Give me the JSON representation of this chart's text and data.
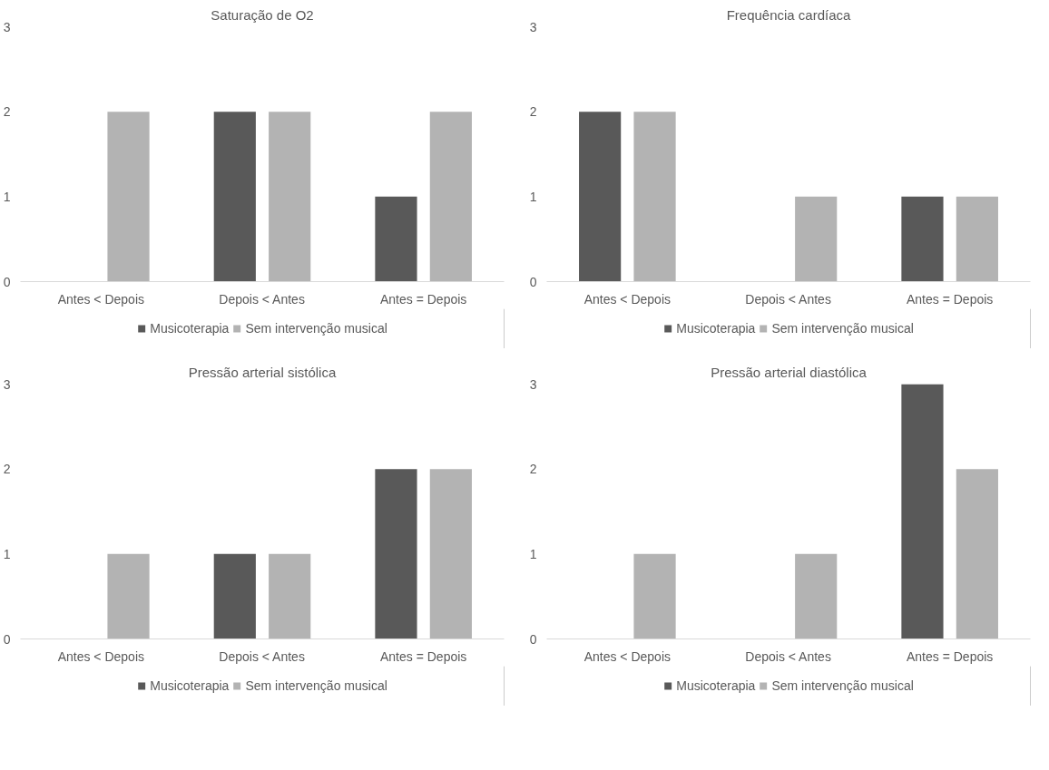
{
  "chart_data": [
    {
      "type": "bar",
      "title": "Saturação de O2",
      "categories": [
        "Antes < Depois",
        "Depois < Antes",
        "Antes = Depois"
      ],
      "ylim": [
        0,
        3
      ],
      "yticks": [
        0,
        1,
        2,
        3
      ],
      "grid": false,
      "legend": "bottom",
      "series": [
        {
          "name": "Musicoterapia",
          "color": "#595959",
          "values": [
            0,
            2,
            1
          ]
        },
        {
          "name": "Sem intervenção musical",
          "color": "#b3b3b3",
          "values": [
            2,
            2,
            2
          ]
        }
      ]
    },
    {
      "type": "bar",
      "title": "Frequência cardíaca",
      "categories": [
        "Antes < Depois",
        "Depois < Antes",
        "Antes = Depois"
      ],
      "ylim": [
        0,
        3
      ],
      "yticks": [
        0,
        1,
        2,
        3
      ],
      "grid": false,
      "legend": "bottom",
      "series": [
        {
          "name": "Musicoterapia",
          "color": "#595959",
          "values": [
            2,
            0,
            1
          ]
        },
        {
          "name": "Sem intervenção musical",
          "color": "#b3b3b3",
          "values": [
            2,
            1,
            1
          ]
        }
      ]
    },
    {
      "type": "bar",
      "title": "Pressão arterial sistólica",
      "categories": [
        "Antes < Depois",
        "Depois < Antes",
        "Antes = Depois"
      ],
      "ylim": [
        0,
        3
      ],
      "yticks": [
        0,
        1,
        2,
        3
      ],
      "grid": false,
      "legend": "bottom",
      "series": [
        {
          "name": "Musicoterapia",
          "color": "#595959",
          "values": [
            0,
            1,
            2
          ]
        },
        {
          "name": "Sem intervenção musical",
          "color": "#b3b3b3",
          "values": [
            1,
            1,
            2
          ]
        }
      ]
    },
    {
      "type": "bar",
      "title": "Pressão arterial diastólica",
      "categories": [
        "Antes < Depois",
        "Depois < Antes",
        "Antes = Depois"
      ],
      "ylim": [
        0,
        3
      ],
      "yticks": [
        0,
        1,
        2,
        3
      ],
      "grid": false,
      "legend": "bottom",
      "series": [
        {
          "name": "Musicoterapia",
          "color": "#595959",
          "values": [
            0,
            0,
            3
          ]
        },
        {
          "name": "Sem intervenção musical",
          "color": "#b3b3b3",
          "values": [
            1,
            1,
            2
          ]
        }
      ]
    }
  ]
}
